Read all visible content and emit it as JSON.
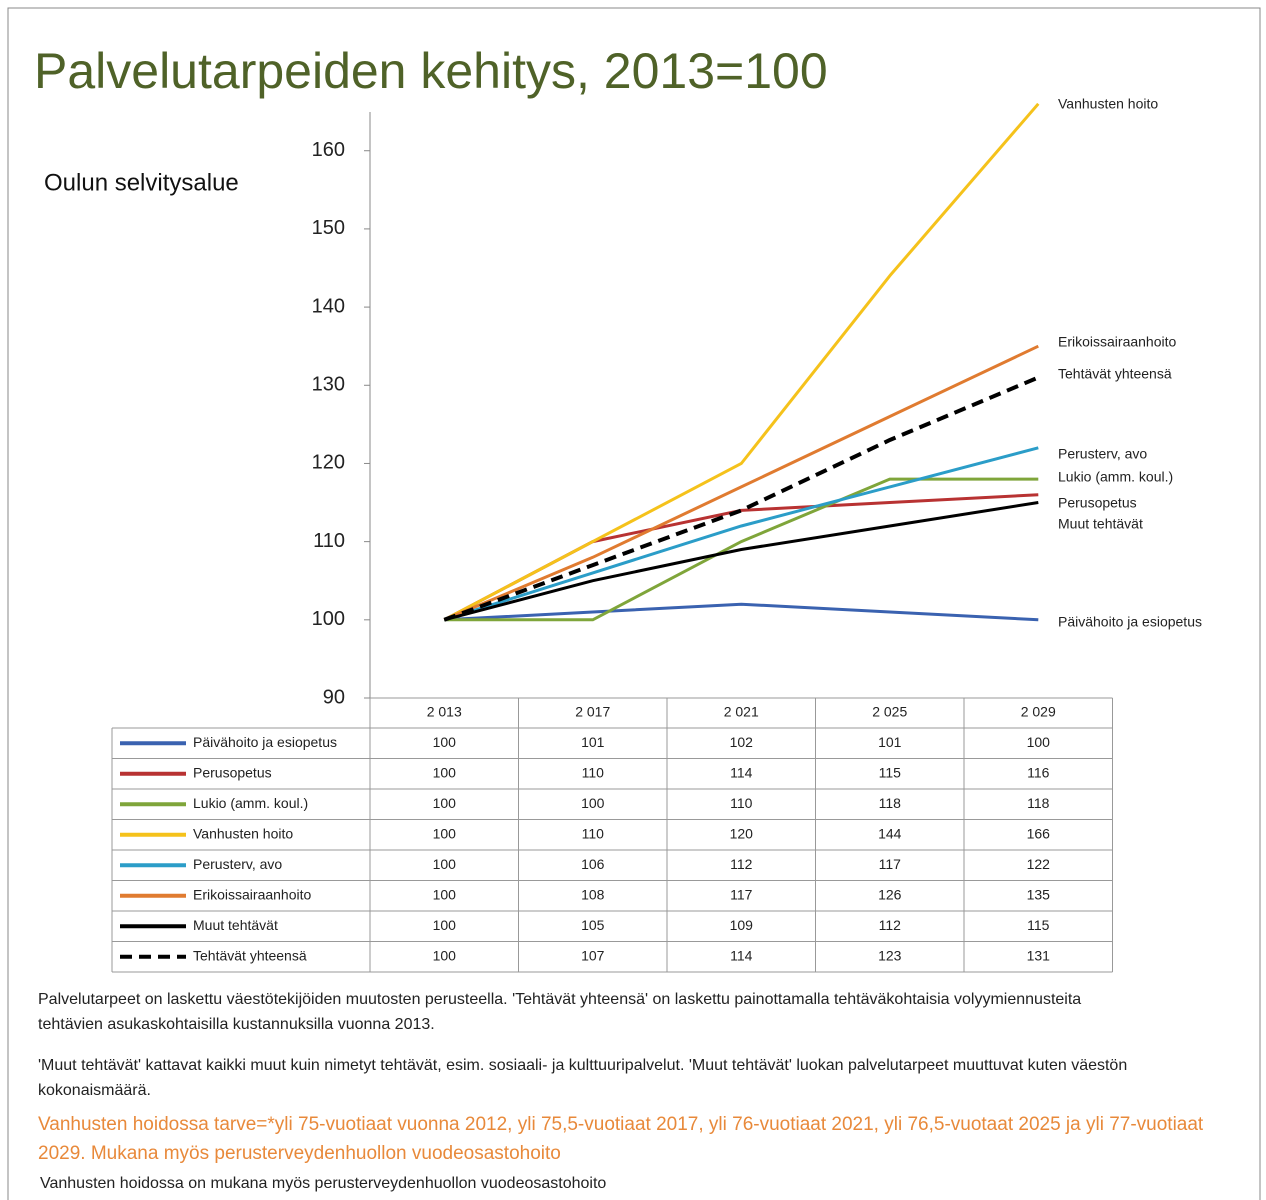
{
  "chart_data": {
    "type": "line",
    "title": "Palvelutarpeiden kehitys, 2013=100",
    "subtitle": "Oulun selvitysalue",
    "categories": [
      "2 013",
      "2 017",
      "2 021",
      "2 025",
      "2 029"
    ],
    "ylim": [
      90,
      167
    ],
    "yticks": [
      90,
      100,
      110,
      120,
      130,
      140,
      150,
      160
    ],
    "series": [
      {
        "name": "Päivähoito ja esiopetus",
        "color": "#3a62b0",
        "values": [
          100,
          101,
          102,
          101,
          100
        ]
      },
      {
        "name": "Perusopetus",
        "color": "#b83232",
        "values": [
          100,
          110,
          114,
          115,
          116
        ]
      },
      {
        "name": "Lukio (amm. koul.)",
        "color": "#7fa53a",
        "values": [
          100,
          100,
          110,
          118,
          118
        ]
      },
      {
        "name": "Vanhusten hoito",
        "color": "#f5c21b",
        "values": [
          100,
          110,
          120,
          144,
          166
        ]
      },
      {
        "name": "Perusterv, avo",
        "color": "#2b9dc8",
        "values": [
          100,
          106,
          112,
          117,
          122
        ]
      },
      {
        "name": "Erikoissairaanhoito",
        "color": "#e07b30",
        "values": [
          100,
          108,
          117,
          126,
          135
        ]
      },
      {
        "name": "Muut tehtävät",
        "color": "#000000",
        "values": [
          100,
          105,
          109,
          112,
          115
        ]
      },
      {
        "name": "Tehtävät yhteensä",
        "color": "#000000",
        "style": "dashed",
        "values": [
          100,
          107,
          114,
          123,
          131
        ]
      }
    ],
    "notes": [
      "Palvelutarpeet on laskettu väestötekijöiden muutosten perusteella. 'Tehtävät yhteensä' on laskettu painottamalla tehtäväkohtaisia volyymiennusteita tehtävien asukaskohtaisilla kustannuksilla vuonna 2013.",
      "'Muut tehtävät'  kattavat kaikki muut kuin nimetyt tehtävät, esim. sosiaali- ja kulttuuripalvelut. 'Muut tehtävät' luokan palvelutarpeet muuttuvat kuten väestön kokonaismäärä.",
      "Vanhusten hoidossa tarve=*yli 75-vuotiaat vuonna 2012, yli 75,5-vuotiaat 2017, yli 76-vuotiaat 2021, yli 76,5-vuotaat 2025 ja yli 77-vuotiaat 2029.   Mukana myös perusterveydenhuollon vuodeosastohoito",
      "Vanhusten hoidossa on mukana myös perusterveydenhuollon vuodeosastohoito"
    ]
  }
}
